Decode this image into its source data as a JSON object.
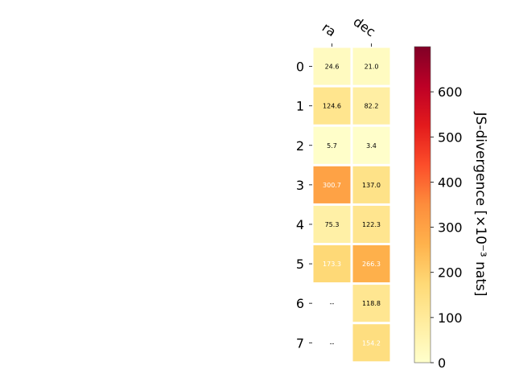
{
  "chart_data": {
    "type": "heatmap",
    "columns": [
      "ra",
      "dec"
    ],
    "rows": [
      "0",
      "1",
      "2",
      "3",
      "4",
      "5",
      "6",
      "7"
    ],
    "values": [
      [
        24.6,
        21.0
      ],
      [
        124.6,
        82.2
      ],
      [
        5.7,
        3.4
      ],
      [
        300.7,
        137.0
      ],
      [
        75.3,
        122.3
      ],
      [
        173.3,
        266.3
      ],
      [
        null,
        118.8
      ],
      [
        null,
        154.2
      ]
    ],
    "cell_labels": [
      [
        "24.6",
        "21.0"
      ],
      [
        "124.6",
        "82.2"
      ],
      [
        "5.7",
        "3.4"
      ],
      [
        "300.7",
        "137.0"
      ],
      [
        "75.3",
        "122.3"
      ],
      [
        "173.3",
        "266.3"
      ],
      [
        "--",
        "118.8"
      ],
      [
        "--",
        "154.2"
      ]
    ],
    "colorbar": {
      "label": "JS-divergence [×10⁻³ nats]",
      "range": [
        0,
        700
      ],
      "ticks": [
        0,
        100,
        200,
        300,
        400,
        500,
        600
      ],
      "colormap": "YlOrRd"
    }
  }
}
